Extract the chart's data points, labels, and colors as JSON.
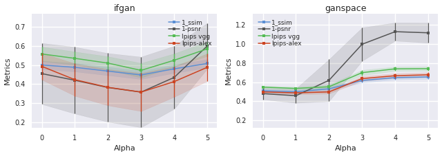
{
  "ifgan": {
    "title": "ifgan",
    "alpha": [
      0,
      1,
      2,
      3,
      4,
      5
    ],
    "ssim": {
      "mean": [
        0.5,
        0.488,
        0.468,
        0.448,
        0.48,
        0.508
      ],
      "std": [
        0.022,
        0.022,
        0.022,
        0.022,
        0.022,
        0.022
      ],
      "color": "#5b8fd4",
      "label": "1_ssim"
    },
    "lpsnr": {
      "mean": [
        0.455,
        0.42,
        0.382,
        0.358,
        0.435,
        0.6
      ],
      "std": [
        0.16,
        0.175,
        0.18,
        0.185,
        0.165,
        0.12
      ],
      "color": "#555555",
      "label": "1-psnr"
    },
    "lpips_vgg": {
      "mean": [
        0.558,
        0.535,
        0.51,
        0.472,
        0.525,
        0.585
      ],
      "std": [
        0.038,
        0.035,
        0.035,
        0.038,
        0.035,
        0.038
      ],
      "color": "#55bb55",
      "label": "lpips vgg"
    },
    "lpips_alex": {
      "mean": [
        0.493,
        0.423,
        0.383,
        0.358,
        0.413,
        0.488
      ],
      "std": [
        0.07,
        0.085,
        0.095,
        0.1,
        0.08,
        0.072
      ],
      "color": "#cc4422",
      "label": "lpips-alex"
    },
    "ylabel": "Metrics",
    "xlabel": "Alpha",
    "ylim": [
      0.17,
      0.77
    ]
  },
  "ganspace": {
    "title": "ganspace",
    "alpha": [
      0,
      1,
      2,
      3,
      4,
      5
    ],
    "ssim": {
      "mean": [
        0.51,
        0.5,
        0.53,
        0.618,
        0.648,
        0.655
      ],
      "std": [
        0.018,
        0.018,
        0.02,
        0.022,
        0.02,
        0.02
      ],
      "color": "#5b8fd4",
      "label": "1_ssim"
    },
    "lpsnr": {
      "mean": [
        0.48,
        0.458,
        0.62,
        0.998,
        1.13,
        1.118
      ],
      "std": [
        0.06,
        0.075,
        0.22,
        0.175,
        0.095,
        0.105
      ],
      "color": "#555555",
      "label": "1-psnr"
    },
    "lpips_vgg": {
      "mean": [
        0.548,
        0.535,
        0.552,
        0.7,
        0.74,
        0.742
      ],
      "std": [
        0.015,
        0.015,
        0.02,
        0.028,
        0.022,
        0.022
      ],
      "color": "#55bb55",
      "label": "lpips vgg"
    },
    "lpips_alex": {
      "mean": [
        0.498,
        0.488,
        0.498,
        0.638,
        0.668,
        0.678
      ],
      "std": [
        0.015,
        0.015,
        0.018,
        0.025,
        0.025,
        0.025
      ],
      "color": "#cc4422",
      "label": "lpips-alex"
    },
    "ylabel": "Metrics",
    "xlabel": "Alpha",
    "ylim": [
      0.12,
      1.32
    ]
  },
  "style": "seaborn-v0_8",
  "legend_fontsize": 6.5,
  "title_fontsize": 9,
  "tick_fontsize": 7,
  "label_fontsize": 8
}
